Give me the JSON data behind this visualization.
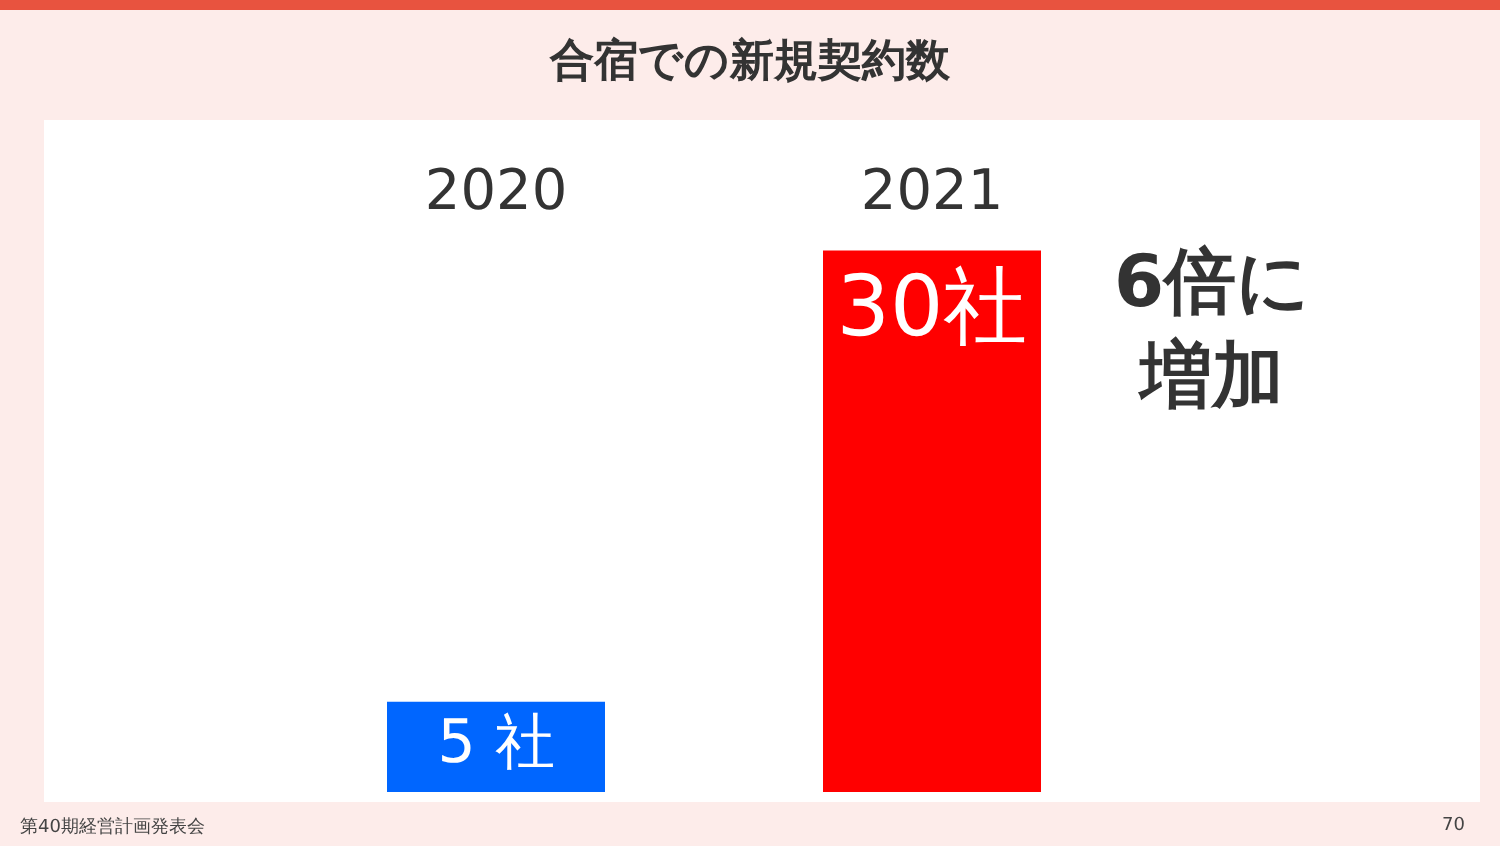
{
  "chart_data": {
    "type": "bar",
    "title": "合宿での新規契約数",
    "categories": [
      "2020",
      "2021"
    ],
    "values": [
      5,
      30
    ],
    "colors": [
      "#0066ff",
      "#ff0000"
    ],
    "value_labels": [
      "5 社",
      "30社"
    ],
    "tick_labels": "x",
    "legend": false,
    "annotations": [
      "6倍に増加",
      "第40期経営計画発表会",
      "70"
    ]
  }
}
